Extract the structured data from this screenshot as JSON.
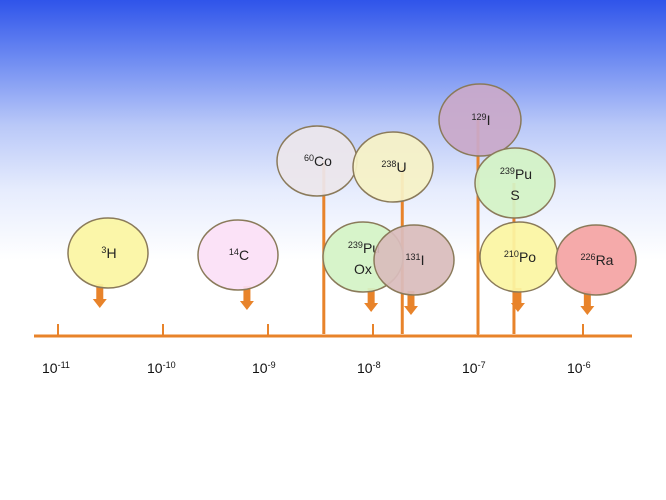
{
  "colors": {
    "axis": "#e8832a",
    "stick": "#e8832a",
    "bubble_stroke": "#8a7a5a"
  },
  "axis": {
    "scale": "log10",
    "ticks": [
      {
        "base": "10",
        "exp": "-11",
        "value": 1e-11
      },
      {
        "base": "10",
        "exp": "-10",
        "value": 1e-10
      },
      {
        "base": "10",
        "exp": "-9",
        "value": 1e-09
      },
      {
        "base": "10",
        "exp": "-8",
        "value": 1e-08
      },
      {
        "base": "10",
        "exp": "-7",
        "value": 1e-07
      },
      {
        "base": "10",
        "exp": "-6",
        "value": 1e-06
      }
    ]
  },
  "nuclides": [
    {
      "mass": "3",
      "symbol": "H",
      "sub": "",
      "fill": "#fbf5a2",
      "value": 2.5e-11,
      "kind": "arrow"
    },
    {
      "mass": "14",
      "symbol": "C",
      "sub": "",
      "fill": "#fbe0f6",
      "value": 6.3e-10,
      "kind": "arrow"
    },
    {
      "mass": "60",
      "symbol": "Co",
      "sub": "",
      "fill": "#ece6ec",
      "value": 3.4e-09,
      "kind": "stick"
    },
    {
      "mass": "238",
      "symbol": "U",
      "sub": "",
      "fill": "#f6f2c6",
      "value": 1.9e-08,
      "kind": "stick"
    },
    {
      "mass": "239",
      "symbol": "Pu",
      "sub": "Ox",
      "fill": "#d4f3c6",
      "value": 9.6e-09,
      "kind": "arrow"
    },
    {
      "mass": "131",
      "symbol": "I",
      "sub": "",
      "fill": "#d9bcbc",
      "value": 2.3e-08,
      "kind": "arrow"
    },
    {
      "mass": "129",
      "symbol": "I",
      "sub": "",
      "fill": "#c9a9c9",
      "value": 1e-07,
      "kind": "stick"
    },
    {
      "mass": "239",
      "symbol": "Pu",
      "sub": "S",
      "fill": "#d4f3c6",
      "value": 2.2e-07,
      "kind": "stick"
    },
    {
      "mass": "210",
      "symbol": "Po",
      "sub": "",
      "fill": "#fbf5a2",
      "value": 2.4e-07,
      "kind": "arrow"
    },
    {
      "mass": "226",
      "symbol": "Ra",
      "sub": "",
      "fill": "#f4a4a4",
      "value": 1.1e-06,
      "kind": "arrow"
    }
  ]
}
